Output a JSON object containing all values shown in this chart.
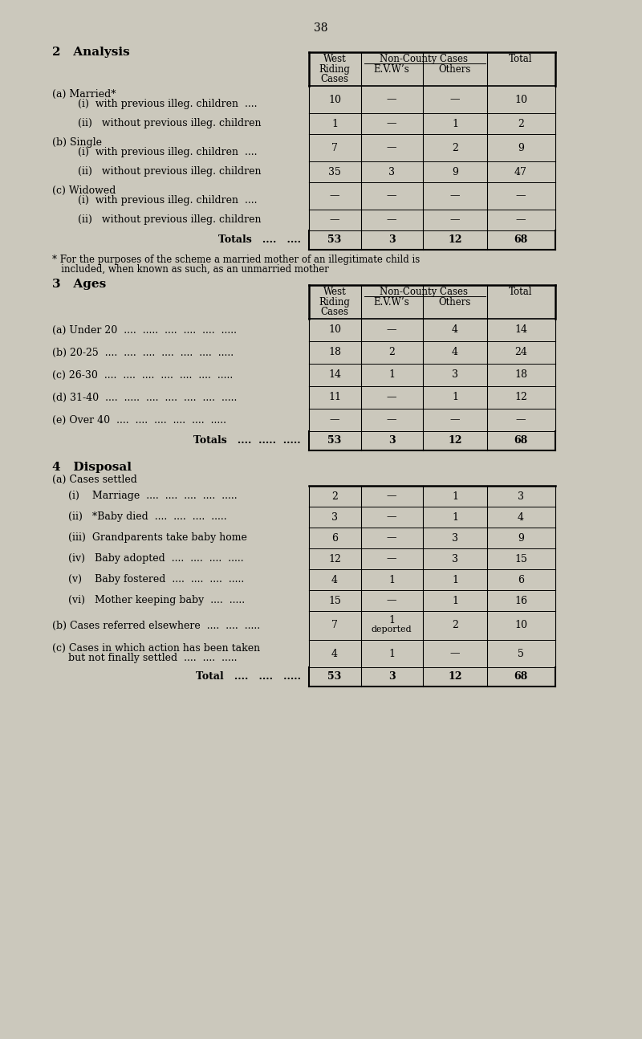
{
  "page_number": "38",
  "bg_color": "#cbc8bc",
  "section2_title": "2   Analysis",
  "section3_title": "3   Ages",
  "section4_title": "4   Disposal",
  "col_headers_row1": [
    "West",
    "Non-County Cases",
    ""
  ],
  "col_headers_row2": [
    "Riding",
    "",
    "Total"
  ],
  "col_headers_row3": [
    "Cases",
    "E.V.W’s   Others",
    ""
  ],
  "section2_rows": [
    {
      "label1": "(a) Married*",
      "label2": "     (i)  with previous illeg. children  ....",
      "vals": [
        "10",
        "—",
        "—",
        "10"
      ],
      "double": true
    },
    {
      "label1": "     (ii)   without previous illeg. children",
      "label2": "",
      "vals": [
        "1",
        "—",
        "1",
        "2"
      ],
      "double": false
    },
    {
      "label1": "(b) Single",
      "label2": "     (i)  with previous illeg. children  ....",
      "vals": [
        "7",
        "—",
        "2",
        "9"
      ],
      "double": true
    },
    {
      "label1": "     (ii)   without previous illeg. children",
      "label2": "",
      "vals": [
        "35",
        "3",
        "9",
        "47"
      ],
      "double": false
    },
    {
      "label1": "(c) Widowed",
      "label2": "     (i)  with previous illeg. children  ....",
      "vals": [
        "—",
        "—",
        "—",
        "—"
      ],
      "double": true
    },
    {
      "label1": "     (ii)   without previous illeg. children",
      "label2": "",
      "vals": [
        "—",
        "—",
        "—",
        "—"
      ],
      "double": false
    },
    {
      "label1": "Totals   ....   ....",
      "label2": "",
      "vals": [
        "53",
        "3",
        "12",
        "68"
      ],
      "double": false,
      "bold": true,
      "totals": true
    }
  ],
  "footnote1": "* For the purposes of the scheme a married mother of an illegitimate child is",
  "footnote2": "   included, when known as such, as an unmarried mother",
  "section3_rows": [
    {
      "label": "(a) Under 20  ....  .....  ....  ....  ....  .....",
      "vals": [
        "10",
        "—",
        "4",
        "14"
      ]
    },
    {
      "label": "(b) 20-25  ....  ....  ....  ....  ....  ....  .....",
      "vals": [
        "18",
        "2",
        "4",
        "24"
      ]
    },
    {
      "label": "(c) 26-30  ....  ....  ....  ....  ....  ....  .....",
      "vals": [
        "14",
        "1",
        "3",
        "18"
      ]
    },
    {
      "label": "(d) 31-40  ....  .....  ....  ....  ....  ....  .....",
      "vals": [
        "11",
        "—",
        "1",
        "12"
      ]
    },
    {
      "label": "(e) Over 40  ....  ....  ....  ....  ....  .....",
      "vals": [
        "—",
        "—",
        "—",
        "—"
      ]
    },
    {
      "label": "Totals   ....  .....  .....",
      "vals": [
        "53",
        "3",
        "12",
        "68"
      ],
      "bold": true,
      "totals": true
    }
  ],
  "section4_sub_a": "(a) Cases settled",
  "section4_rows": [
    {
      "label1": "     (i)    Marriage  ....  ....  ....  ....  .....",
      "label2": "",
      "vals": [
        "2",
        "—",
        "1",
        "3"
      ]
    },
    {
      "label1": "     (ii)   *Baby died  ....  ....  ....  .....",
      "label2": "",
      "vals": [
        "3",
        "—",
        "1",
        "4"
      ]
    },
    {
      "label1": "     (iii)  Grandparents take baby home",
      "label2": "",
      "vals": [
        "6",
        "—",
        "3",
        "9"
      ]
    },
    {
      "label1": "     (iv)   Baby adopted  ....  ....  ....  .....",
      "label2": "",
      "vals": [
        "12",
        "—",
        "3",
        "15"
      ]
    },
    {
      "label1": "     (v)    Baby fostered  ....  ....  ....  .....",
      "label2": "",
      "vals": [
        "4",
        "1",
        "1",
        "6"
      ]
    },
    {
      "label1": "     (vi)   Mother keeping baby  ....  .....",
      "label2": "",
      "vals": [
        "15",
        "—",
        "1",
        "16"
      ]
    },
    {
      "label1": "(b) Cases referred elsewhere  ....  ....  .....",
      "label2": "",
      "vals": [
        "7",
        "1\ndeported",
        "2",
        "10"
      ]
    },
    {
      "label1": "(c) Cases in which action has been taken",
      "label2": "     but not finally settled  ....  ....  .....",
      "vals": [
        "4",
        "1",
        "—",
        "5"
      ],
      "double": true
    },
    {
      "label1": "Total   ....   ....   .....",
      "label2": "",
      "vals": [
        "53",
        "3",
        "12",
        "68"
      ],
      "bold": true,
      "totals": true
    }
  ]
}
